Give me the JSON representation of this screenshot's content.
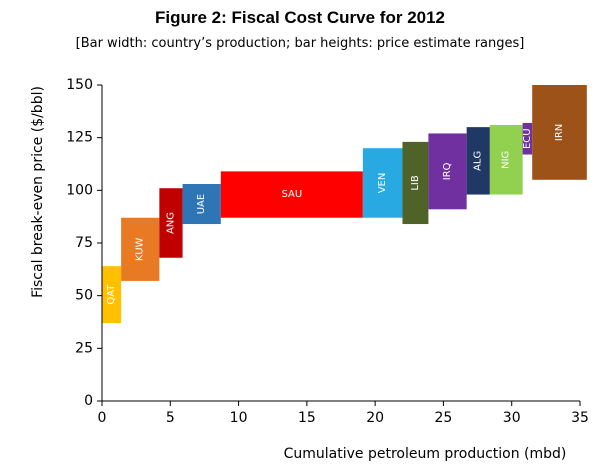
{
  "chart_data": {
    "type": "bar",
    "title": "Figure 2: Fiscal Cost Curve for 2012",
    "subtitle": "[Bar width: country’s production; bar heights: price estimate ranges]",
    "xlabel": "Cumulative petroleum production (mbd)",
    "ylabel": "Fiscal break-even price ($/bbl)",
    "xlim": [
      0,
      35
    ],
    "ylim": [
      0,
      150
    ],
    "xticks": [
      "0",
      "5",
      "10",
      "15",
      "20",
      "25",
      "30",
      "35"
    ],
    "yticks": [
      "0",
      "25",
      "50",
      "75",
      "100",
      "125",
      "150"
    ],
    "grid": false,
    "legend": "none",
    "bars": [
      {
        "label": "QAT",
        "x_start": 0.0,
        "x_end": 1.4,
        "low": 37,
        "high": 64,
        "color": "#FFC000"
      },
      {
        "label": "KUW",
        "x_start": 1.4,
        "x_end": 4.2,
        "low": 57,
        "high": 87,
        "color": "#E97A24"
      },
      {
        "label": "ANG",
        "x_start": 4.2,
        "x_end": 5.9,
        "low": 68,
        "high": 101,
        "color": "#C00000"
      },
      {
        "label": "UAE",
        "x_start": 5.9,
        "x_end": 8.7,
        "low": 84,
        "high": 103,
        "color": "#2E75B6"
      },
      {
        "label": "SAU",
        "x_start": 8.7,
        "x_end": 19.1,
        "low": 87,
        "high": 109,
        "color": "#FF0000"
      },
      {
        "label": "VEN",
        "x_start": 19.1,
        "x_end": 22.0,
        "low": 87,
        "high": 120,
        "color": "#29A9E1"
      },
      {
        "label": "LIB",
        "x_start": 22.0,
        "x_end": 23.9,
        "low": 84,
        "high": 123,
        "color": "#4F6228"
      },
      {
        "label": "IRQ",
        "x_start": 23.9,
        "x_end": 26.7,
        "low": 91,
        "high": 127,
        "color": "#7030A0"
      },
      {
        "label": "ALG",
        "x_start": 26.7,
        "x_end": 28.4,
        "low": 98,
        "high": 130,
        "color": "#1F3864"
      },
      {
        "label": "NIG",
        "x_start": 28.4,
        "x_end": 30.8,
        "low": 98,
        "high": 131,
        "color": "#92D050"
      },
      {
        "label": "ECU",
        "x_start": 30.8,
        "x_end": 31.5,
        "low": 117,
        "high": 132,
        "color": "#7030A0"
      },
      {
        "label": "IRN",
        "x_start": 31.5,
        "x_end": 35.5,
        "low": 105,
        "high": 150,
        "color": "#9C5218"
      }
    ]
  }
}
